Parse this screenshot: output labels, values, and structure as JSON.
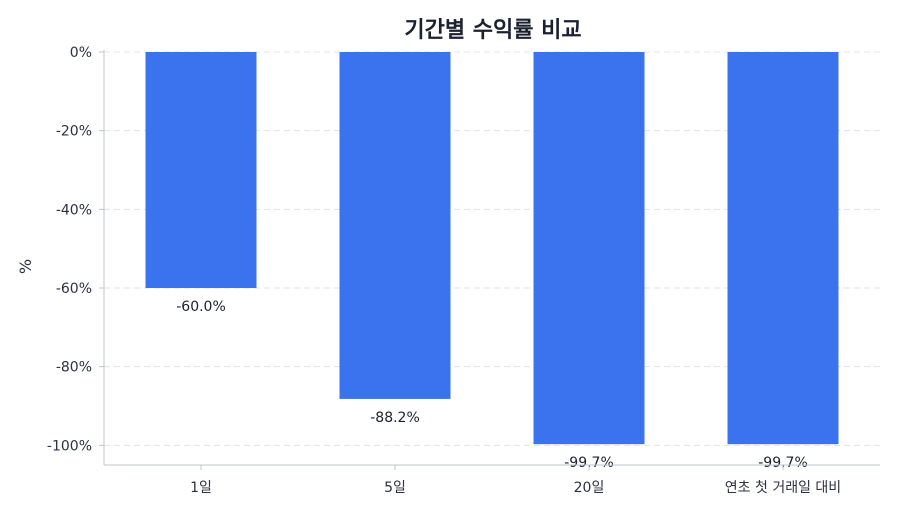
{
  "chart_data": {
    "type": "bar",
    "title": "기간별 수익률 비교",
    "xlabel": "",
    "ylabel": "%",
    "categories": [
      "1일",
      "5일",
      "20일",
      "연초 첫 거래일 대비"
    ],
    "values": [
      -60.0,
      -88.2,
      -99.7,
      -99.7
    ],
    "data_labels": [
      "-60.0%",
      "-88.2%",
      "-99.7%",
      "-99.7%"
    ],
    "ylim": [
      -105,
      0
    ],
    "yticks": [
      0,
      -20,
      -40,
      -60,
      -80,
      -100
    ],
    "ytick_labels": [
      "0%",
      "-20%",
      "-40%",
      "-60%",
      "-80%",
      "-100%"
    ],
    "grid": true,
    "bar_color": "#3b73ee",
    "grid_color": "#dfe3ea",
    "axis_color": "#bfc5cf"
  }
}
